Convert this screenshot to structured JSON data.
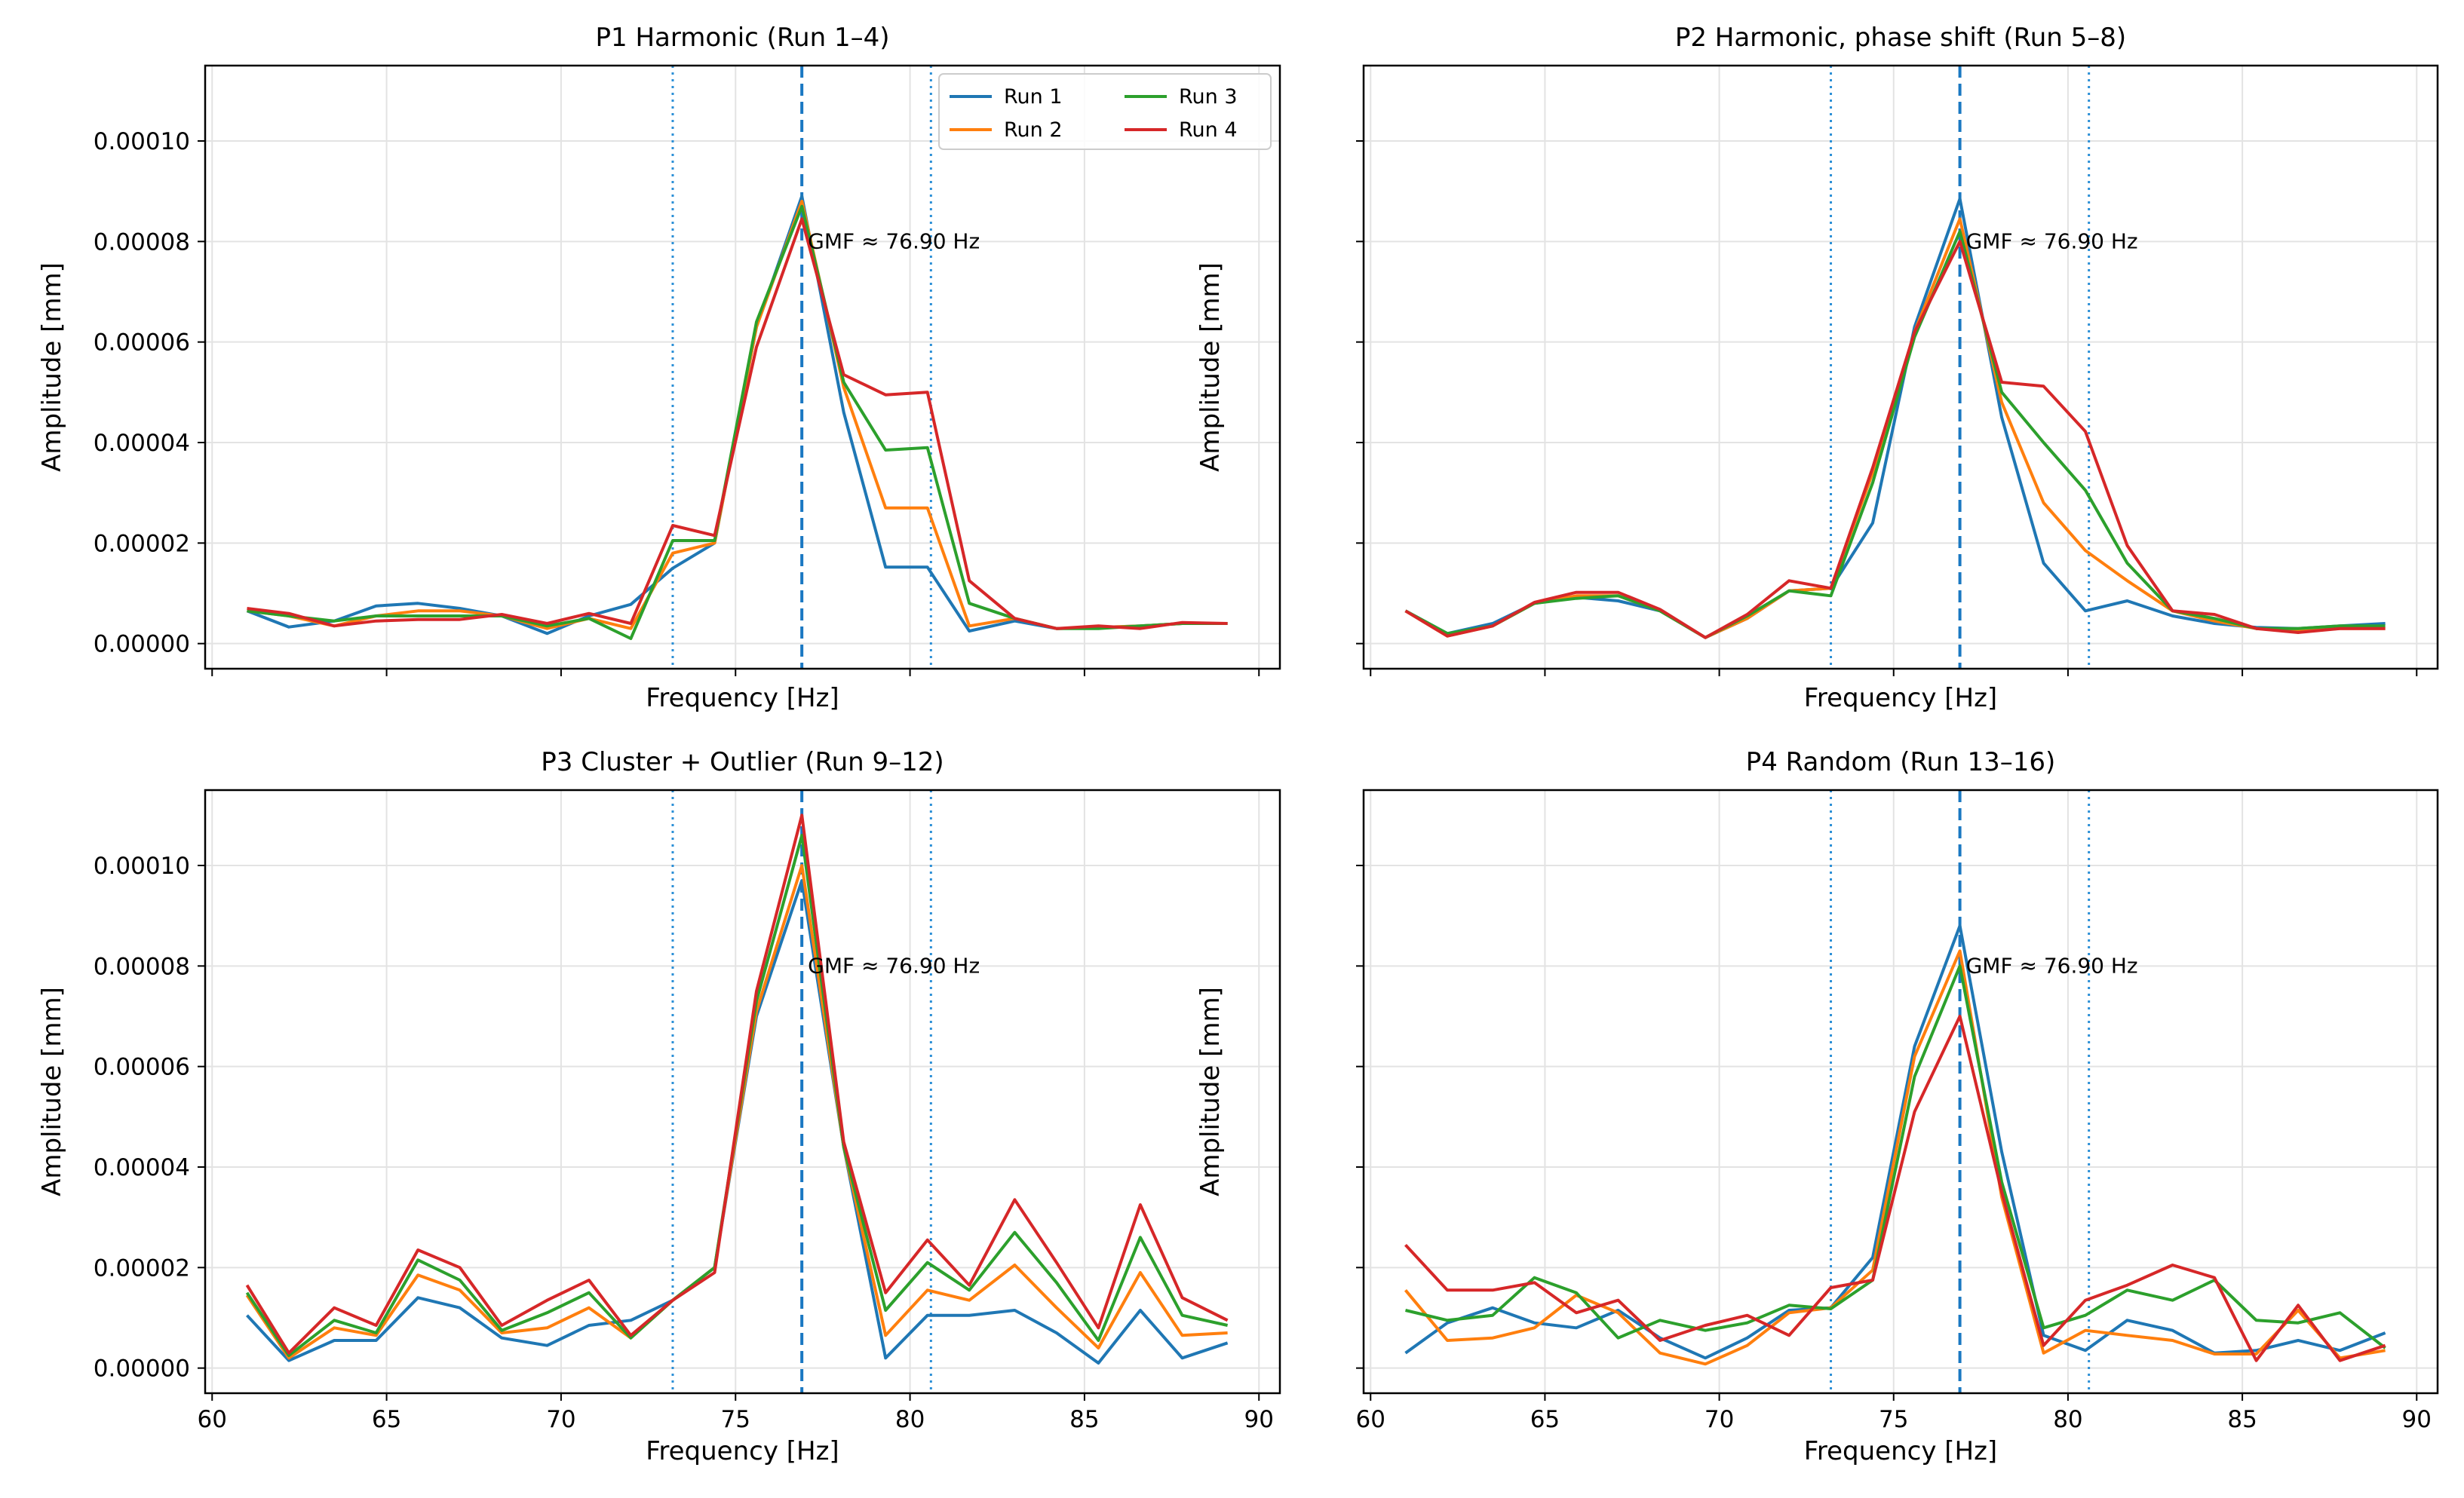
{
  "chart_data": [
    {
      "type": "line",
      "title": "P1 Harmonic (Run 1–4)",
      "xlabel": "Frequency [Hz]",
      "ylabel": "Amplitude [mm]",
      "xlim": [
        59.8,
        90.6
      ],
      "ylim": [
        -5e-06,
        0.000115
      ],
      "xticks": [
        60,
        65,
        70,
        75,
        80,
        85,
        90
      ],
      "yticks": [
        "0.00000",
        "0.00002",
        "0.00004",
        "0.00006",
        "0.00008",
        "0.00010"
      ],
      "show_xtick_labels": false,
      "show_ytick_labels": true,
      "grid": true,
      "legend": "top-right",
      "annotation": "GMF ≈ 76.90 Hz",
      "gmf_hz": 76.9,
      "sideband_hz": [
        73.2,
        80.6
      ],
      "x": [
        61.0,
        62.2,
        63.5,
        64.7,
        65.9,
        67.1,
        68.3,
        69.6,
        70.8,
        72.0,
        73.2,
        74.4,
        75.6,
        76.9,
        78.1,
        79.3,
        80.5,
        81.7,
        83.0,
        84.2,
        85.4,
        86.6,
        87.8,
        89.1
      ],
      "series": [
        {
          "name": "Run 1",
          "color": "#1f77b4",
          "values": [
            6.5e-06,
            3.3e-06,
            4.5e-06,
            7.5e-06,
            8e-06,
            7e-06,
            5.5e-06,
            2e-06,
            5.5e-06,
            7.8e-06,
            1.5e-05,
            2e-05,
            6.3e-05,
            8.9e-05,
            4.6e-05,
            1.52e-05,
            1.52e-05,
            2.5e-06,
            4.5e-06,
            3e-06,
            3.2e-06,
            3.5e-06,
            4e-06,
            4e-06
          ]
        },
        {
          "name": "Run 2",
          "color": "#ff7f0e",
          "values": [
            6.5e-06,
            5.5e-06,
            3.5e-06,
            5.5e-06,
            6.5e-06,
            6.5e-06,
            5.5e-06,
            3e-06,
            5e-06,
            3e-06,
            1.8e-05,
            2e-05,
            6.3e-05,
            8.8e-05,
            5.1e-05,
            2.7e-05,
            2.7e-05,
            3.5e-06,
            5e-06,
            3e-06,
            3.2e-06,
            3.5e-06,
            4e-06,
            4e-06
          ]
        },
        {
          "name": "Run 3",
          "color": "#2ca02c",
          "values": [
            6.5e-06,
            5.5e-06,
            4.5e-06,
            5.5e-06,
            5.5e-06,
            5.5e-06,
            5.5e-06,
            3.5e-06,
            5e-06,
            1e-06,
            2.05e-05,
            2.05e-05,
            6.4e-05,
            8.7e-05,
            5.2e-05,
            3.85e-05,
            3.9e-05,
            8e-06,
            5e-06,
            3e-06,
            3e-06,
            3.5e-06,
            4e-06,
            4e-06
          ]
        },
        {
          "name": "Run 4",
          "color": "#d62728",
          "values": [
            7e-06,
            6e-06,
            3.5e-06,
            4.5e-06,
            4.8e-06,
            4.8e-06,
            5.8e-06,
            4e-06,
            6e-06,
            4e-06,
            2.35e-05,
            2.15e-05,
            5.9e-05,
            8.45e-05,
            5.35e-05,
            4.95e-05,
            5e-05,
            1.25e-05,
            5e-06,
            3e-06,
            3.5e-06,
            3e-06,
            4.2e-06,
            4e-06
          ]
        }
      ]
    },
    {
      "type": "line",
      "title": "P2 Harmonic, phase shift (Run 5–8)",
      "xlabel": "Frequency [Hz]",
      "ylabel": "Amplitude [mm]",
      "xlim": [
        59.8,
        90.6
      ],
      "ylim": [
        -5e-06,
        0.000115
      ],
      "xticks": [
        60,
        65,
        70,
        75,
        80,
        85,
        90
      ],
      "yticks": [
        "0.00000",
        "0.00002",
        "0.00004",
        "0.00006",
        "0.00008",
        "0.00010"
      ],
      "show_xtick_labels": false,
      "show_ytick_labels": false,
      "grid": true,
      "legend": "none",
      "annotation": "GMF ≈ 76.90 Hz",
      "gmf_hz": 76.9,
      "sideband_hz": [
        73.2,
        80.6
      ],
      "x": [
        61.0,
        62.2,
        63.5,
        64.7,
        65.9,
        67.1,
        68.3,
        69.6,
        70.8,
        72.0,
        73.2,
        74.4,
        75.6,
        76.9,
        78.1,
        79.3,
        80.5,
        81.7,
        83.0,
        84.2,
        85.4,
        86.6,
        87.8,
        89.1
      ],
      "series": [
        {
          "name": "Run 1",
          "color": "#1f77b4",
          "values": [
            6.5e-06,
            2e-06,
            4e-06,
            8e-06,
            9.2e-06,
            8.5e-06,
            6.5e-06,
            1.2e-06,
            5e-06,
            1.05e-05,
            1.1e-05,
            2.4e-05,
            6.3e-05,
            8.85e-05,
            4.5e-05,
            1.6e-05,
            6.5e-06,
            8.5e-06,
            5.5e-06,
            4e-06,
            3.2e-06,
            3e-06,
            3.5e-06,
            4e-06
          ]
        },
        {
          "name": "Run 2",
          "color": "#ff7f0e",
          "values": [
            6.5e-06,
            1.5e-06,
            3.5e-06,
            8e-06,
            9.5e-06,
            9.5e-06,
            6.5e-06,
            1.2e-06,
            5e-06,
            1.05e-05,
            1.1e-05,
            3.4e-05,
            6.2e-05,
            8.45e-05,
            4.8e-05,
            2.8e-05,
            1.85e-05,
            1.25e-05,
            6.5e-06,
            4.5e-06,
            3e-06,
            2.5e-06,
            3e-06,
            3e-06
          ]
        },
        {
          "name": "Run 3",
          "color": "#2ca02c",
          "values": [
            6.5e-06,
            2e-06,
            3.5e-06,
            8e-06,
            9e-06,
            9.5e-06,
            6.5e-06,
            1.2e-06,
            5.5e-06,
            1.05e-05,
            9.5e-06,
            3.2e-05,
            6.1e-05,
            8.2e-05,
            5e-05,
            4e-05,
            3.05e-05,
            1.6e-05,
            6.5e-06,
            5e-06,
            3e-06,
            3e-06,
            3.5e-06,
            3.5e-06
          ]
        },
        {
          "name": "Run 4",
          "color": "#d62728",
          "values": [
            6.5e-06,
            1.5e-06,
            3.5e-06,
            8.2e-06,
            1.02e-05,
            1.02e-05,
            6.8e-06,
            1.2e-06,
            5.8e-06,
            1.25e-05,
            1.1e-05,
            3.5e-05,
            6.2e-05,
            8e-05,
            5.2e-05,
            5.12e-05,
            4.22e-05,
            1.95e-05,
            6.5e-06,
            5.8e-06,
            3e-06,
            2.2e-06,
            3e-06,
            3e-06
          ]
        }
      ]
    },
    {
      "type": "line",
      "title": "P3 Cluster + Outlier (Run 9–12)",
      "xlabel": "Frequency [Hz]",
      "ylabel": "Amplitude [mm]",
      "xlim": [
        59.8,
        90.6
      ],
      "ylim": [
        -5e-06,
        0.000115
      ],
      "xticks": [
        60,
        65,
        70,
        75,
        80,
        85,
        90
      ],
      "yticks": [
        "0.00000",
        "0.00002",
        "0.00004",
        "0.00006",
        "0.00008",
        "0.00010"
      ],
      "show_xtick_labels": true,
      "show_ytick_labels": true,
      "grid": true,
      "legend": "none",
      "annotation": "GMF ≈ 76.90 Hz",
      "gmf_hz": 76.9,
      "sideband_hz": [
        73.2,
        80.6
      ],
      "x": [
        61.0,
        62.2,
        63.5,
        64.7,
        65.9,
        67.1,
        68.3,
        69.6,
        70.8,
        72.0,
        73.2,
        74.4,
        75.6,
        76.9,
        78.1,
        79.3,
        80.5,
        81.7,
        83.0,
        84.2,
        85.4,
        86.6,
        87.8,
        89.1
      ],
      "series": [
        {
          "name": "Run 1",
          "color": "#1f77b4",
          "values": [
            1.05e-05,
            1.5e-06,
            5.5e-06,
            5.5e-06,
            1.4e-05,
            1.2e-05,
            6e-06,
            4.5e-06,
            8.5e-06,
            9.5e-06,
            1.35e-05,
            2e-05,
            7e-05,
            9.7e-05,
            4.4e-05,
            2e-06,
            1.05e-05,
            1.05e-05,
            1.15e-05,
            7e-06,
            1e-06,
            1.15e-05,
            2e-06,
            5e-06
          ]
        },
        {
          "name": "Run 2",
          "color": "#ff7f0e",
          "values": [
            1.45e-05,
            2e-06,
            8e-06,
            6.5e-06,
            1.85e-05,
            1.55e-05,
            7e-06,
            8e-06,
            1.2e-05,
            6e-06,
            1.35e-05,
            2e-05,
            7.1e-05,
            0.0001,
            4.4e-05,
            6.5e-06,
            1.55e-05,
            1.35e-05,
            2.05e-05,
            1.2e-05,
            4e-06,
            1.9e-05,
            6.5e-06,
            7e-06
          ]
        },
        {
          "name": "Run 3",
          "color": "#2ca02c",
          "values": [
            1.5e-05,
            2.5e-06,
            9.5e-06,
            7e-06,
            2.15e-05,
            1.75e-05,
            7.5e-06,
            1.1e-05,
            1.5e-05,
            6e-06,
            1.35e-05,
            2e-05,
            7.3e-05,
            0.000106,
            4.4e-05,
            1.15e-05,
            2.1e-05,
            1.55e-05,
            2.7e-05,
            1.7e-05,
            5.5e-06,
            2.6e-05,
            1.05e-05,
            8.5e-06
          ]
        },
        {
          "name": "Run 4",
          "color": "#d62728",
          "values": [
            1.65e-05,
            3e-06,
            1.2e-05,
            8.5e-06,
            2.35e-05,
            2e-05,
            8.5e-06,
            1.35e-05,
            1.75e-05,
            6.5e-06,
            1.35e-05,
            1.9e-05,
            7.5e-05,
            0.00011,
            4.5e-05,
            1.5e-05,
            2.55e-05,
            1.65e-05,
            3.35e-05,
            2.1e-05,
            8e-06,
            3.25e-05,
            1.4e-05,
            9.5e-06
          ]
        }
      ]
    },
    {
      "type": "line",
      "title": "P4 Random (Run 13–16)",
      "xlabel": "Frequency [Hz]",
      "ylabel": "Amplitude [mm]",
      "xlim": [
        59.8,
        90.6
      ],
      "ylim": [
        -5e-06,
        0.000115
      ],
      "xticks": [
        60,
        65,
        70,
        75,
        80,
        85,
        90
      ],
      "yticks": [
        "0.00000",
        "0.00002",
        "0.00004",
        "0.00006",
        "0.00008",
        "0.00010"
      ],
      "show_xtick_labels": true,
      "show_ytick_labels": false,
      "grid": true,
      "legend": "none",
      "annotation": "GMF ≈ 76.90 Hz",
      "gmf_hz": 76.9,
      "sideband_hz": [
        73.2,
        80.6
      ],
      "x": [
        61.0,
        62.2,
        63.5,
        64.7,
        65.9,
        67.1,
        68.3,
        69.6,
        70.8,
        72.0,
        73.2,
        74.4,
        75.6,
        76.9,
        78.1,
        79.3,
        80.5,
        81.7,
        83.0,
        84.2,
        85.4,
        86.6,
        87.8,
        89.1
      ],
      "series": [
        {
          "name": "Run 1",
          "color": "#1f77b4",
          "values": [
            3e-06,
            9e-06,
            1.2e-05,
            9e-06,
            8e-06,
            1.15e-05,
            6e-06,
            2e-06,
            6e-06,
            1.15e-05,
            1.2e-05,
            2.2e-05,
            6.4e-05,
            8.8e-05,
            4.3e-05,
            6.5e-06,
            3.5e-06,
            9.5e-06,
            7.5e-06,
            3e-06,
            3.5e-06,
            5.5e-06,
            3.5e-06,
            7e-06
          ]
        },
        {
          "name": "Run 2",
          "color": "#ff7f0e",
          "values": [
            1.55e-05,
            5.5e-06,
            6e-06,
            8e-06,
            1.45e-05,
            1.1e-05,
            3e-06,
            8e-07,
            4.5e-06,
            1.1e-05,
            1.2e-05,
            1.95e-05,
            6.2e-05,
            8.3e-05,
            3.4e-05,
            3e-06,
            7.5e-06,
            6.5e-06,
            5.5e-06,
            2.8e-06,
            2.8e-06,
            1.15e-05,
            2e-06,
            3.5e-06
          ]
        },
        {
          "name": "Run 3",
          "color": "#2ca02c",
          "values": [
            1.15e-05,
            9.5e-06,
            1.05e-05,
            1.8e-05,
            1.5e-05,
            6e-06,
            9.5e-06,
            7.5e-06,
            9e-06,
            1.25e-05,
            1.18e-05,
            1.75e-05,
            5.8e-05,
            8e-05,
            3.7e-05,
            8e-06,
            1.05e-05,
            1.55e-05,
            1.35e-05,
            1.75e-05,
            9.5e-06,
            9e-06,
            1.1e-05,
            4e-06
          ]
        },
        {
          "name": "Run 4",
          "color": "#d62728",
          "values": [
            2.45e-05,
            1.55e-05,
            1.55e-05,
            1.7e-05,
            1.1e-05,
            1.35e-05,
            5.5e-06,
            8.5e-06,
            1.05e-05,
            6.5e-06,
            1.6e-05,
            1.75e-05,
            5.1e-05,
            7e-05,
            3.5e-05,
            4.5e-06,
            1.35e-05,
            1.65e-05,
            2.05e-05,
            1.8e-05,
            1.5e-06,
            1.25e-05,
            1.5e-06,
            4.5e-06
          ]
        }
      ]
    }
  ]
}
